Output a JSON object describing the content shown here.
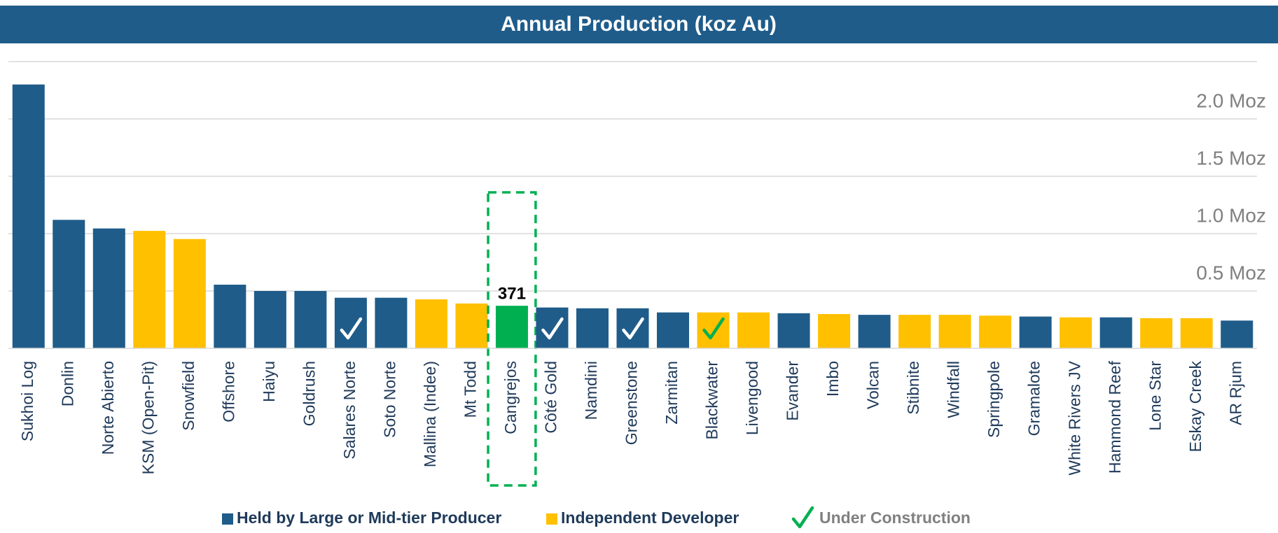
{
  "chart_data": {
    "type": "bar",
    "title": "Annual Production (koz Au)",
    "categories": [
      "Sukhoi Log",
      "Donlin",
      "Norte Abierto",
      "KSM (Open-Pit)",
      "Snowfield",
      "Offshore",
      "Haiyu",
      "Goldrush",
      "Salares Norte",
      "Soto Norte",
      "Mallina (Indee)",
      "Mt Todd",
      "Cangrejos",
      "Côté Gold",
      "Namdini",
      "Greenstone",
      "Zarmitan",
      "Blackwater",
      "Livengood",
      "Evander",
      "Imbo",
      "Volcan",
      "Stibnite",
      "Windfall",
      "Springpole",
      "Gramalote",
      "White Rivers JV",
      "Hammond Reef",
      "Lone Star",
      "Eskay Creek",
      "AR Rjum"
    ],
    "values": [
      2300,
      1120,
      1045,
      1024,
      953,
      555,
      500,
      500,
      441,
      441,
      427,
      391,
      371,
      356,
      349,
      349,
      313,
      313,
      313,
      306,
      299,
      292,
      292,
      292,
      285,
      277,
      270,
      270,
      263,
      263,
      242
    ],
    "colors": [
      "#1f5c8a",
      "#1f5c8a",
      "#1f5c8a",
      "#ffc000",
      "#ffc000",
      "#1f5c8a",
      "#1f5c8a",
      "#1f5c8a",
      "#1f5c8a",
      "#1f5c8a",
      "#ffc000",
      "#ffc000",
      "#00b050",
      "#1f5c8a",
      "#1f5c8a",
      "#1f5c8a",
      "#1f5c8a",
      "#ffc000",
      "#ffc000",
      "#1f5c8a",
      "#ffc000",
      "#1f5c8a",
      "#ffc000",
      "#ffc000",
      "#ffc000",
      "#1f5c8a",
      "#ffc000",
      "#1f5c8a",
      "#ffc000",
      "#ffc000",
      "#1f5c8a"
    ],
    "highlight": "Cangrejos",
    "under_construction": [
      "Salares Norte",
      "Côté Gold",
      "Greenstone",
      "Blackwater"
    ],
    "ylim": [
      0,
      2500
    ],
    "yticks": [
      {
        "value": 500,
        "label": "0.5 Moz"
      },
      {
        "value": 1000,
        "label": "1.0 Moz"
      },
      {
        "value": 1500,
        "label": "1.5 Moz"
      },
      {
        "value": 2000,
        "label": "2.0 Moz"
      }
    ],
    "grid": true,
    "legend": [
      {
        "name": "Held by Large or Mid-tier Producer",
        "color": "#1f5c8a"
      },
      {
        "name": "Independent Developer",
        "color": "#ffc000"
      },
      {
        "name": "Under Construction",
        "color": "#00b050"
      }
    ]
  }
}
